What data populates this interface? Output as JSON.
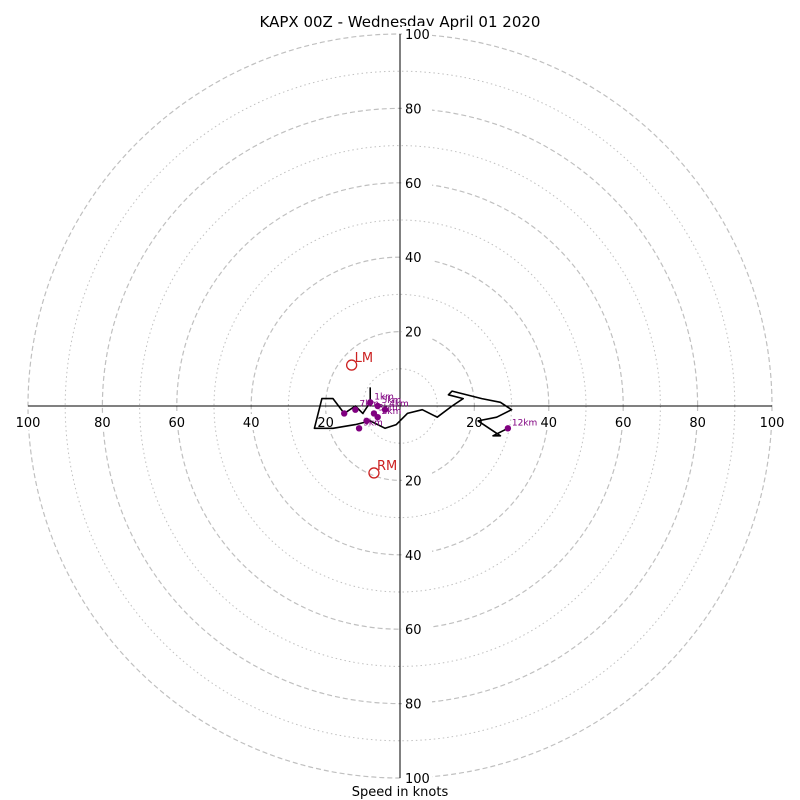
{
  "chart_data": {
    "type": "hodograph",
    "title": "KAPX 00Z - Wednesday April 01 2020",
    "xlabel": "Speed in knots",
    "range": [
      -100,
      100
    ],
    "rings_major": [
      20,
      40,
      60,
      80,
      100
    ],
    "rings_minor": [
      10,
      30,
      50,
      70,
      90
    ],
    "x_ticks": [
      {
        "value": -100,
        "label": "100"
      },
      {
        "value": -80,
        "label": "80"
      },
      {
        "value": -60,
        "label": "60"
      },
      {
        "value": -40,
        "label": "40"
      },
      {
        "value": -20,
        "label": "20"
      },
      {
        "value": 20,
        "label": "20"
      },
      {
        "value": 40,
        "label": "40"
      },
      {
        "value": 60,
        "label": "60"
      },
      {
        "value": 80,
        "label": "80"
      },
      {
        "value": 100,
        "label": "100"
      }
    ],
    "y_ticks": [
      {
        "value": 100,
        "label": "100"
      },
      {
        "value": 80,
        "label": "80"
      },
      {
        "value": 60,
        "label": "60"
      },
      {
        "value": 40,
        "label": "40"
      },
      {
        "value": 20,
        "label": "20"
      },
      {
        "value": -20,
        "label": "20"
      },
      {
        "value": -40,
        "label": "40"
      },
      {
        "value": -60,
        "label": "60"
      },
      {
        "value": -80,
        "label": "80"
      },
      {
        "value": -100,
        "label": "100"
      }
    ],
    "wind_profile": [
      [
        -8,
        5
      ],
      [
        -8,
        1
      ],
      [
        -10,
        -2
      ],
      [
        -12,
        0
      ],
      [
        -15,
        -2
      ],
      [
        -18,
        2
      ],
      [
        -21,
        2
      ],
      [
        -23,
        -6
      ],
      [
        -18,
        -6
      ],
      [
        -12,
        -5
      ],
      [
        -8,
        -4
      ],
      [
        -4,
        -6
      ],
      [
        -1,
        -5
      ],
      [
        2,
        -2
      ],
      [
        6,
        -1
      ],
      [
        10,
        -3
      ],
      [
        14,
        0
      ],
      [
        17,
        2
      ],
      [
        13,
        3
      ],
      [
        14,
        4
      ],
      [
        22,
        2
      ],
      [
        27,
        1
      ],
      [
        30,
        -1
      ],
      [
        26,
        -3
      ],
      [
        21,
        -4
      ],
      [
        27,
        -8
      ],
      [
        25,
        -8
      ],
      [
        29,
        -6
      ]
    ],
    "height_markers": [
      {
        "u": -15,
        "v": -2,
        "label": ""
      },
      {
        "u": -12,
        "v": -1,
        "label": "7km"
      },
      {
        "u": -8,
        "v": 1,
        "label": "1km"
      },
      {
        "u": -6,
        "v": 0,
        "label": "5km"
      },
      {
        "u": -4,
        "v": -1,
        "label": "4km"
      },
      {
        "u": -7,
        "v": -2,
        "label": "3km"
      },
      {
        "u": -6,
        "v": -3,
        "label": "2km"
      },
      {
        "u": -9,
        "v": -4,
        "label": ""
      },
      {
        "u": -11,
        "v": -6,
        "label": "9km"
      },
      {
        "u": 29,
        "v": -6,
        "label": "12km"
      }
    ],
    "storm_motion": [
      {
        "name": "LM",
        "u": -13,
        "v": 11
      },
      {
        "name": "RM",
        "u": -7,
        "v": -18
      }
    ],
    "colors": {
      "grid": "#c0c0c0",
      "profile": "#000000",
      "height_marker": "#800080",
      "storm_motion": "#cc2222"
    }
  }
}
